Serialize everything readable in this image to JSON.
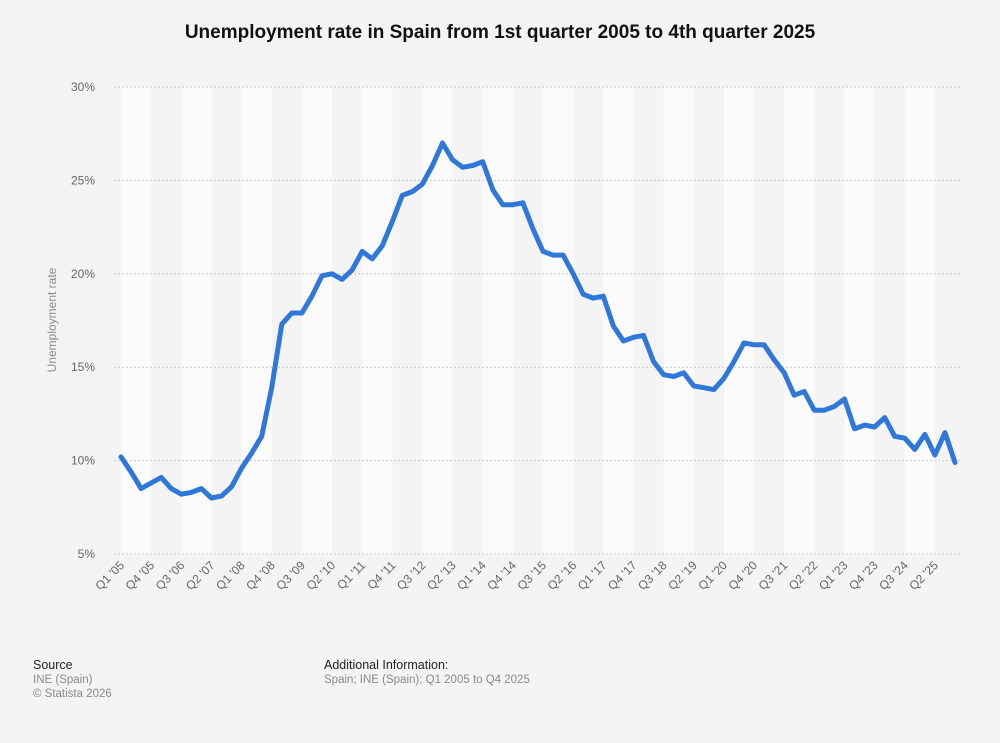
{
  "title": "Unemployment rate in Spain from 1st quarter 2005 to 4th quarter 2025",
  "source": {
    "heading": "Source",
    "lines": [
      "INE (Spain)",
      "© Statista 2026"
    ]
  },
  "additional": {
    "heading": "Additional Information:",
    "text": "Spain; INE (Spain); Q1 2005 to Q4 2025"
  },
  "colors": {
    "line": "#2f77d8",
    "band": "#fbfbfb",
    "background": "#f4f4f4",
    "grid": "#c8c8c8"
  },
  "chart_data": {
    "type": "line",
    "title": "Unemployment rate in Spain from 1st quarter 2005 to 4th quarter 2025",
    "xlabel": "",
    "ylabel": "Unemployment rate",
    "ylim": [
      5,
      30
    ],
    "yticks": [
      5,
      10,
      15,
      20,
      25,
      30
    ],
    "ytick_labels": [
      "5%",
      "10%",
      "15%",
      "20%",
      "25%",
      "30%"
    ],
    "grid": true,
    "x_tick_labels": [
      "Q1 '05",
      "Q4 '05",
      "Q3 '06",
      "Q2 '07",
      "Q1 '08",
      "Q4 '08",
      "Q3 '09",
      "Q2 '10",
      "Q1 '11",
      "Q4 '11",
      "Q3 '12",
      "Q2 '13",
      "Q1 '14",
      "Q4 '14",
      "Q3 '15",
      "Q2 '16",
      "Q1 '17",
      "Q4 '17",
      "Q3 '18",
      "Q2 '19",
      "Q1 '20",
      "Q4 '20",
      "Q3 '21",
      "Q2 '22",
      "Q1 '23",
      "Q4 '23",
      "Q3 '24",
      "Q2 '25"
    ],
    "x": [
      "Q1 2005",
      "Q2 2005",
      "Q3 2005",
      "Q4 2005",
      "Q1 2006",
      "Q2 2006",
      "Q3 2006",
      "Q4 2006",
      "Q1 2007",
      "Q2 2007",
      "Q3 2007",
      "Q4 2007",
      "Q1 2008",
      "Q2 2008",
      "Q3 2008",
      "Q4 2008",
      "Q1 2009",
      "Q2 2009",
      "Q3 2009",
      "Q4 2009",
      "Q1 2010",
      "Q2 2010",
      "Q3 2010",
      "Q4 2010",
      "Q1 2011",
      "Q2 2011",
      "Q3 2011",
      "Q4 2011",
      "Q1 2012",
      "Q2 2012",
      "Q3 2012",
      "Q4 2012",
      "Q1 2013",
      "Q2 2013",
      "Q3 2013",
      "Q4 2013",
      "Q1 2014",
      "Q2 2014",
      "Q3 2014",
      "Q4 2014",
      "Q1 2015",
      "Q2 2015",
      "Q3 2015",
      "Q4 2015",
      "Q1 2016",
      "Q2 2016",
      "Q3 2016",
      "Q4 2016",
      "Q1 2017",
      "Q2 2017",
      "Q3 2017",
      "Q4 2017",
      "Q1 2018",
      "Q2 2018",
      "Q3 2018",
      "Q4 2018",
      "Q1 2019",
      "Q2 2019",
      "Q3 2019",
      "Q4 2019",
      "Q1 2020",
      "Q2 2020",
      "Q3 2020",
      "Q4 2020",
      "Q1 2021",
      "Q2 2021",
      "Q3 2021",
      "Q4 2021",
      "Q1 2022",
      "Q2 2022",
      "Q3 2022",
      "Q4 2022",
      "Q1 2023",
      "Q2 2023",
      "Q3 2023",
      "Q4 2023",
      "Q1 2024",
      "Q2 2024",
      "Q3 2024",
      "Q4 2024",
      "Q1 2025",
      "Q2 2025",
      "Q3 2025",
      "Q4 2025"
    ],
    "series": [
      {
        "values": [
          10.2,
          9.4,
          8.5,
          8.8,
          9.1,
          8.5,
          8.2,
          8.3,
          8.5,
          8.0,
          8.1,
          8.6,
          9.6,
          10.4,
          11.3,
          13.9,
          17.3,
          17.9,
          17.9,
          18.8,
          19.9,
          20.0,
          19.7,
          20.2,
          21.2,
          20.8,
          21.5,
          22.8,
          24.2,
          24.4,
          24.8,
          25.8,
          27.0,
          26.1,
          25.7,
          25.8,
          26.0,
          24.5,
          23.7,
          23.7,
          23.8,
          22.4,
          21.2,
          21.0,
          21.0,
          20.0,
          18.9,
          18.7,
          18.8,
          17.2,
          16.4,
          16.6,
          16.7,
          15.3,
          14.6,
          14.5,
          14.7,
          14.0,
          13.9,
          13.8,
          14.4,
          15.3,
          16.3,
          16.2,
          16.2,
          15.4,
          14.7,
          13.5,
          13.7,
          12.7,
          12.7,
          12.9,
          13.3,
          11.7,
          11.9,
          11.8,
          12.3,
          11.3,
          11.2,
          10.6,
          11.4,
          10.3,
          11.5,
          9.9
        ]
      }
    ]
  }
}
